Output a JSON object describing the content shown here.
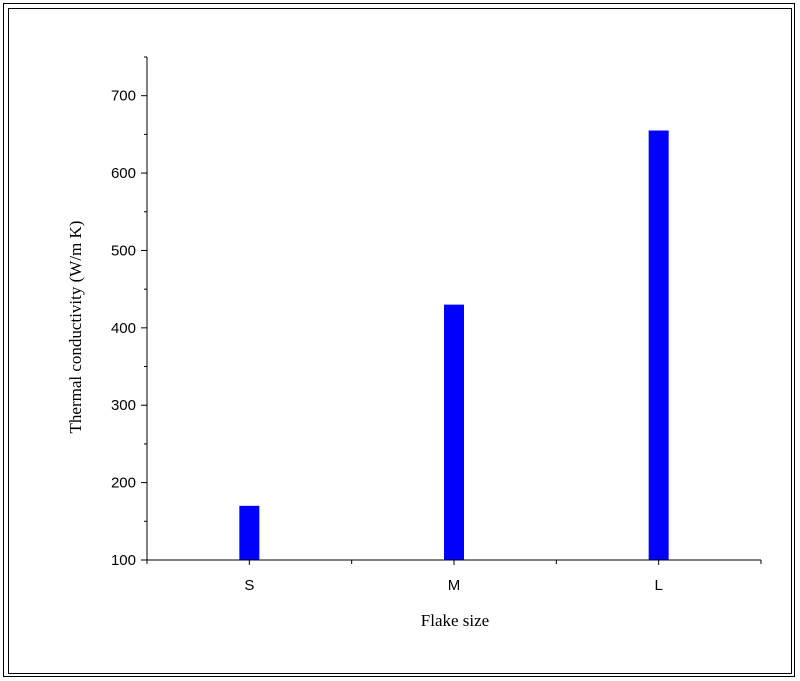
{
  "chart_data": {
    "type": "bar",
    "title": "",
    "xlabel": "Flake size",
    "ylabel": "Thermal conductivity (W/m K)",
    "categories": [
      "S",
      "M",
      "L"
    ],
    "values": [
      170,
      430,
      655
    ],
    "ylim": [
      100,
      750
    ],
    "yticks": [
      100,
      200,
      300,
      400,
      500,
      600,
      700
    ],
    "bar_color": "#0000ff",
    "grid": false,
    "legend": "none"
  }
}
